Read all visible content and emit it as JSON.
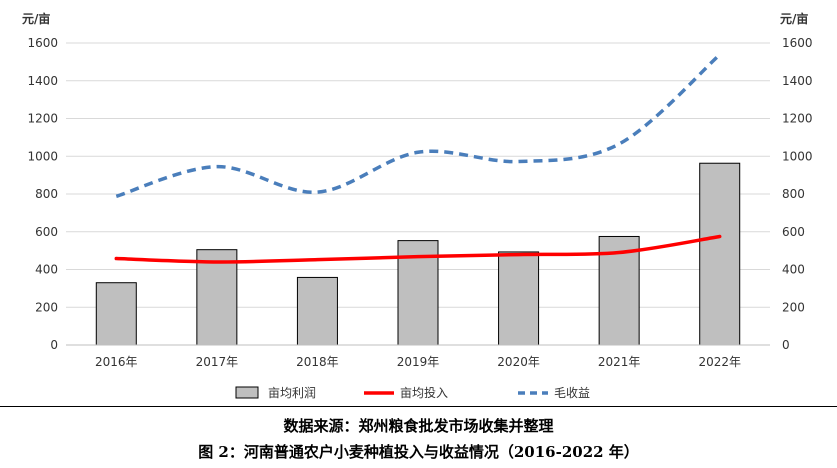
{
  "chart_data": {
    "type": "bar",
    "categories": [
      "2016年",
      "2017年",
      "2018年",
      "2019年",
      "2020年",
      "2021年",
      "2022年"
    ],
    "series": [
      {
        "name": "亩均利润",
        "type": "bar",
        "color": "#bfbfbf",
        "values": [
          330,
          505,
          358,
          553,
          493,
          575,
          963
        ]
      },
      {
        "name": "亩均投入",
        "type": "line",
        "style": "solid",
        "color": "#ff0000",
        "values": [
          458,
          440,
          452,
          468,
          479,
          490,
          575
        ]
      },
      {
        "name": "毛收益",
        "type": "line",
        "style": "dashed",
        "color": "#4a7ebb",
        "values": [
          788,
          945,
          810,
          1021,
          972,
          1065,
          1538
        ]
      }
    ],
    "ylim": [
      0,
      1600
    ],
    "yticks": [
      "0",
      "200",
      "400",
      "600",
      "800",
      "1000",
      "1200",
      "1400",
      "1600"
    ],
    "ylabel_left": "元/亩",
    "ylabel_right": "元/亩",
    "grid": true,
    "legend_position": "bottom"
  },
  "captions": {
    "source": "数据来源：郑州粮食批发市场收集并整理",
    "figure_title": "图 2：河南普通农户小麦种植投入与收益情况（2016-2022 年）"
  }
}
